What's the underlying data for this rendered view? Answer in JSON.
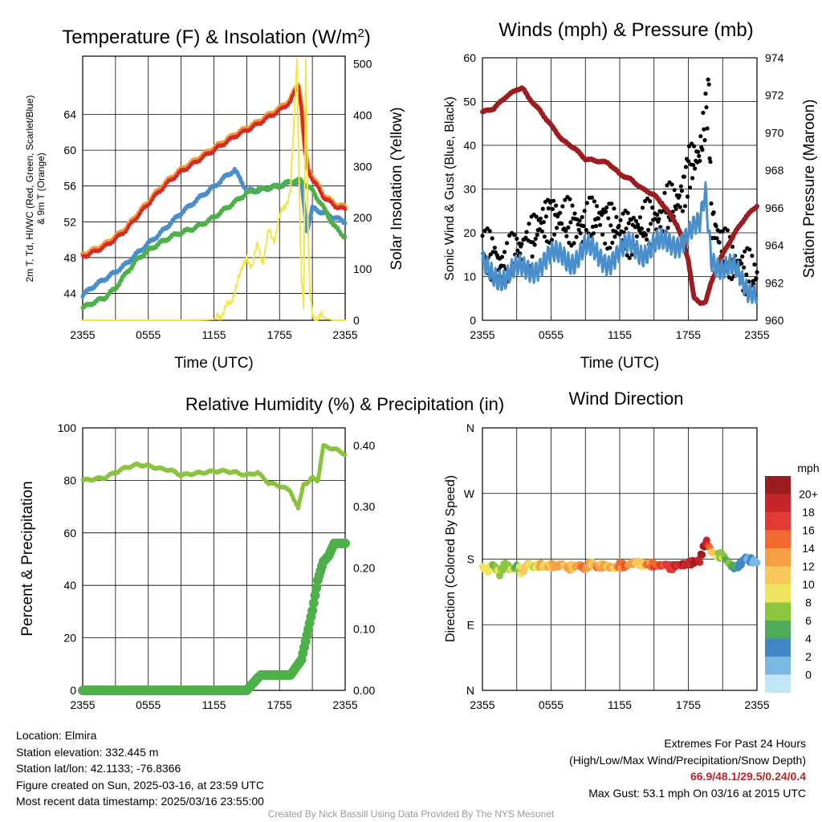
{
  "chart_data": [
    {
      "type": "line",
      "title": "Temperature (F) & Insolation (W/m",
      "title_sup": "2",
      "title_end": ")",
      "xlabel": "Time (UTC)",
      "ylabel_line1": "2m T, Td, HI/WC (Red, Green, Scarlet/Blue)",
      "ylabel_line2": "& 9m T (Orange)",
      "ylabel_right": "Solar Insolation (Yellow)",
      "x_ticks": [
        "2355",
        "0555",
        "1155",
        "1755",
        "2355"
      ],
      "x_hours": [
        0,
        6,
        12,
        18,
        24
      ],
      "ylim": [
        41,
        70.5
      ],
      "y_ticks": [
        44,
        48,
        52,
        56,
        60,
        64
      ],
      "ylim_right": [
        0,
        515
      ],
      "y_ticks_right": [
        0,
        100,
        200,
        300,
        400,
        500
      ],
      "series": [
        {
          "key": "t9m",
          "color": "#f29a38",
          "x": [
            0,
            1,
            2,
            3,
            4,
            5,
            6,
            7,
            8,
            9,
            10,
            11,
            12,
            13,
            14,
            15,
            16,
            17,
            18,
            19,
            19.7,
            20,
            20.3,
            20.6,
            21,
            22,
            23,
            24
          ],
          "y": [
            48.3,
            48.8,
            49.4,
            50.3,
            51.3,
            52.8,
            54.2,
            55.6,
            56.8,
            57.8,
            58.6,
            59.4,
            60.2,
            61.0,
            61.8,
            62.4,
            63.1,
            63.9,
            64.6,
            65.6,
            67.5,
            65.0,
            60.2,
            58.0,
            57.0,
            55.0,
            54.0,
            53.6
          ]
        },
        {
          "key": "t2m",
          "color": "#d42a26",
          "x": [
            0,
            1,
            2,
            3,
            4,
            5,
            6,
            7,
            8,
            9,
            10,
            11,
            12,
            13,
            14,
            15,
            16,
            17,
            18,
            19,
            19.7,
            20,
            20.3,
            20.6,
            21,
            22,
            23,
            24
          ],
          "y": [
            48.1,
            48.6,
            49.2,
            50.1,
            51.1,
            52.6,
            54.0,
            55.4,
            56.6,
            57.6,
            58.4,
            59.2,
            60.0,
            60.8,
            61.6,
            62.2,
            62.9,
            63.7,
            64.4,
            65.4,
            67.4,
            64.8,
            60.0,
            57.8,
            56.8,
            54.8,
            53.8,
            53.4
          ]
        },
        {
          "key": "hiwc",
          "color": "#4a8fcb",
          "x": [
            0,
            1,
            2,
            3,
            4,
            5,
            6,
            7,
            8,
            9,
            10,
            11,
            12,
            13,
            13.9,
            15,
            16,
            17,
            18,
            19,
            20,
            20.5,
            21,
            22,
            23,
            24
          ],
          "y": [
            43.8,
            44.8,
            45.6,
            46.4,
            47.3,
            48.5,
            49.6,
            50.6,
            51.8,
            53.0,
            54.0,
            55.0,
            55.9,
            57.0,
            57.8,
            55.5,
            55.5,
            55.8,
            56.0,
            56.4,
            56.4,
            51.0,
            53.5,
            53.0,
            52.5,
            52.0
          ]
        },
        {
          "key": "td",
          "color": "#4eb049",
          "x": [
            0,
            1,
            2,
            3,
            4,
            5,
            6,
            7,
            8,
            9,
            10,
            11,
            12,
            13,
            14,
            15,
            16,
            17,
            18,
            19,
            20,
            21,
            22,
            23,
            24
          ],
          "y": [
            42.4,
            43.0,
            43.5,
            44.6,
            46.3,
            47.8,
            48.8,
            49.6,
            50.3,
            50.8,
            51.2,
            51.8,
            52.5,
            53.4,
            54.3,
            55.2,
            55.6,
            55.8,
            56.0,
            56.5,
            56.6,
            55.5,
            53.6,
            51.5,
            50.3
          ]
        },
        {
          "key": "solar",
          "color": "#f5e44a",
          "x": [
            0,
            6,
            9,
            11,
            12,
            13,
            13.5,
            14,
            14.5,
            15,
            15.5,
            16,
            16.5,
            17,
            17.5,
            18,
            18.5,
            19,
            19.3,
            19.6,
            19.8,
            20,
            20.2,
            20.4,
            20.6,
            20.8,
            21,
            22,
            23,
            24
          ],
          "y": [
            0,
            0,
            0,
            1,
            2,
            20,
            30,
            70,
            90,
            130,
            100,
            150,
            115,
            170,
            160,
            200,
            220,
            260,
            370,
            505,
            260,
            90,
            30,
            505,
            170,
            40,
            10,
            5,
            0,
            0
          ]
        }
      ]
    },
    {
      "type": "line",
      "title": "Winds (mph) & Pressure (mb)",
      "xlabel": "Time (UTC)",
      "ylabel": "Sonic Wind & Gust (Blue, Black)",
      "ylabel_right": "Station Pressure (Maroon)",
      "x_ticks": [
        "2355",
        "0555",
        "1155",
        "1755",
        "2355"
      ],
      "x_hours": [
        0,
        6,
        12,
        18,
        24
      ],
      "ylim": [
        0,
        60
      ],
      "y_ticks": [
        0,
        10,
        20,
        30,
        40,
        50,
        60
      ],
      "ylim_right": [
        960,
        974
      ],
      "y_ticks_right": [
        960,
        962,
        964,
        966,
        968,
        970,
        972,
        974
      ],
      "series": [
        {
          "key": "pressure",
          "color": "#9b1d20",
          "x": [
            0,
            1,
            2,
            3,
            3.5,
            4,
            5,
            6,
            7,
            8,
            9,
            10,
            11,
            12,
            13,
            14,
            15,
            16,
            17,
            17.5,
            18,
            18.5,
            19,
            19.5,
            20,
            21,
            22,
            23,
            24
          ],
          "y": [
            971.1,
            971.3,
            971.9,
            972.3,
            972.4,
            971.9,
            971.2,
            970.4,
            969.6,
            969.2,
            968.6,
            968.5,
            968.4,
            967.8,
            967.5,
            967.0,
            966.7,
            966.0,
            965.1,
            964.3,
            963.2,
            961.2,
            960.9,
            961.0,
            962.0,
            963.5,
            964.6,
            965.5,
            966.1
          ]
        },
        {
          "key": "sonic_wind",
          "color": "#4a8fcb",
          "x": [
            0,
            1,
            2,
            3,
            4,
            5,
            6,
            7,
            8,
            9,
            10,
            11,
            12,
            13,
            14,
            15,
            16,
            17,
            18,
            19,
            19.5,
            20,
            21,
            22,
            23,
            24
          ],
          "y": [
            12,
            11,
            10,
            11,
            12,
            13,
            14,
            15,
            14,
            16,
            15,
            14,
            15,
            17,
            16,
            17,
            17,
            18,
            20,
            21,
            29,
            15,
            12,
            11,
            8,
            7
          ]
        },
        {
          "key": "gust",
          "color": "#000000",
          "type": "scatter",
          "x": [
            0,
            1,
            2,
            3,
            4,
            5,
            6,
            7,
            8,
            9,
            10,
            11,
            12,
            13,
            14,
            15,
            16,
            17,
            17.5,
            18,
            19,
            19.8,
            20,
            21,
            22,
            23,
            24
          ],
          "y": [
            17,
            14,
            12,
            16,
            17,
            22,
            24,
            23,
            22,
            21,
            24,
            22,
            21,
            20,
            22,
            22,
            25,
            27,
            29,
            35,
            38,
            52,
            24,
            16,
            13,
            11,
            10
          ]
        }
      ]
    },
    {
      "type": "line",
      "title": "Relative Humidity (%) & Precipitation (in)",
      "ylabel": "Percent & Precipitation",
      "x_ticks": [
        "2355",
        "0555",
        "1155",
        "1755",
        "2355"
      ],
      "x_hours": [
        0,
        6,
        12,
        18,
        24
      ],
      "ylim": [
        0,
        100
      ],
      "y_ticks": [
        0,
        20,
        40,
        60,
        80,
        100
      ],
      "ylim_right": [
        0,
        0.4286
      ],
      "y_ticks_right": [
        "0.00",
        "0.10",
        "0.20",
        "0.30",
        "0.40"
      ],
      "series": [
        {
          "key": "rh",
          "color": "#8ac43f",
          "x": [
            0,
            1,
            2,
            3,
            4,
            5,
            6,
            7,
            8,
            9,
            10,
            11,
            12,
            13,
            14,
            15,
            16,
            17,
            18,
            19,
            19.7,
            20.2,
            20.6,
            21,
            21.5,
            22,
            23,
            24
          ],
          "y": [
            80,
            80.5,
            81,
            83,
            85,
            86,
            85.5,
            84.5,
            84,
            82,
            82.5,
            83,
            83.5,
            83.5,
            83,
            82,
            83,
            79,
            78,
            76,
            69,
            79,
            79,
            81,
            80,
            93,
            92,
            90
          ]
        },
        {
          "key": "precip",
          "color": "#4eb049",
          "type": "scatter",
          "x": [
            0,
            10,
            15,
            16,
            16.3,
            17,
            18,
            19,
            20,
            20.5,
            21,
            21.5,
            22,
            22.5,
            23,
            23.5,
            24
          ],
          "y": [
            0,
            0,
            0,
            0.02,
            0.025,
            0.025,
            0.025,
            0.025,
            0.05,
            0.09,
            0.13,
            0.18,
            0.21,
            0.22,
            0.24,
            0.24,
            0.24
          ]
        }
      ]
    },
    {
      "type": "scatter",
      "title": "Wind Direction",
      "ylabel": "Direction (Colored By Speed)",
      "x_ticks": [
        "2355",
        "0555",
        "1155",
        "1755",
        "2355"
      ],
      "x_hours": [
        0,
        6,
        12,
        18,
        24
      ],
      "ylim": [
        0,
        360
      ],
      "y_ticks": [
        "N",
        "E",
        "S",
        "W",
        "N"
      ],
      "y_tick_values": [
        0,
        90,
        180,
        270,
        360
      ],
      "legend_title": "mph",
      "legend_labels": [
        "20+",
        "18",
        "16",
        "14",
        "12",
        "10",
        "8",
        "6",
        "4",
        "2",
        "0"
      ],
      "legend_colors": [
        "#9b1d20",
        "#c4262b",
        "#e23b33",
        "#f06a30",
        "#f59f47",
        "#f7c85a",
        "#f0e35d",
        "#8cc63f",
        "#4eab5c",
        "#3f88c5",
        "#7ab8e3",
        "#c3e6f5"
      ],
      "points": [
        {
          "x": [
            0,
            0.5,
            1,
            1.5,
            2,
            2.5,
            3,
            3.5,
            4,
            4.5,
            5,
            5.5,
            6,
            6.5,
            7,
            7.5,
            8,
            8.5,
            9,
            9.5,
            10,
            10.5,
            11,
            11.5,
            12,
            12.5,
            13,
            13.5,
            14,
            14.5,
            15,
            15.5,
            16,
            16.5,
            17,
            17.5,
            18,
            18.5,
            19,
            19.3,
            19.6,
            20,
            20.5,
            21,
            21.5,
            22,
            22.5,
            23,
            23.5,
            24
          ],
          "dir": [
            168,
            165,
            172,
            160,
            175,
            165,
            170,
            162,
            175,
            168,
            172,
            170,
            171,
            170,
            173,
            168,
            170,
            172,
            166,
            175,
            169,
            171,
            170,
            167,
            172,
            170,
            174,
            176,
            172,
            173,
            172,
            171,
            173,
            168,
            172,
            172,
            174,
            176,
            178,
            195,
            205,
            190,
            185,
            185,
            175,
            168,
            172,
            182,
            178,
            176
          ],
          "spd": [
            10,
            11,
            8,
            9,
            7,
            10,
            6,
            12,
            11,
            8,
            13,
            12,
            14,
            15,
            14,
            13,
            12,
            15,
            14,
            11,
            15,
            13,
            14,
            12,
            16,
            17,
            14,
            12,
            11,
            15,
            16,
            17,
            18,
            19,
            20,
            21,
            20,
            22,
            21,
            22,
            20,
            12,
            9,
            8,
            7,
            6,
            5,
            4,
            3,
            2
          ]
        }
      ]
    }
  ],
  "footer": {
    "location": "Location: Elmira",
    "elevation": "Station elevation: 332.445 m",
    "latlon": "Station lat/lon: 42.1133; -76.8366",
    "created": "Figure created on Sun, 2025-03-16, at 23:59 UTC",
    "recent": "Most recent data timestamp: 2025/03/16 23:55:00",
    "extremes_title": "Extremes For Past 24 Hours",
    "extremes_sub": "(High/Low/Max Wind/Precipitation/Snow Depth)",
    "extremes_values": "66.9/48.1/29.5/0.24/0.4",
    "max_gust": "Max Gust: 53.1 mph On 03/16 at 2015 UTC",
    "credit": "Created By Nick Bassill Using Data Provided By The NYS Mesonet"
  }
}
